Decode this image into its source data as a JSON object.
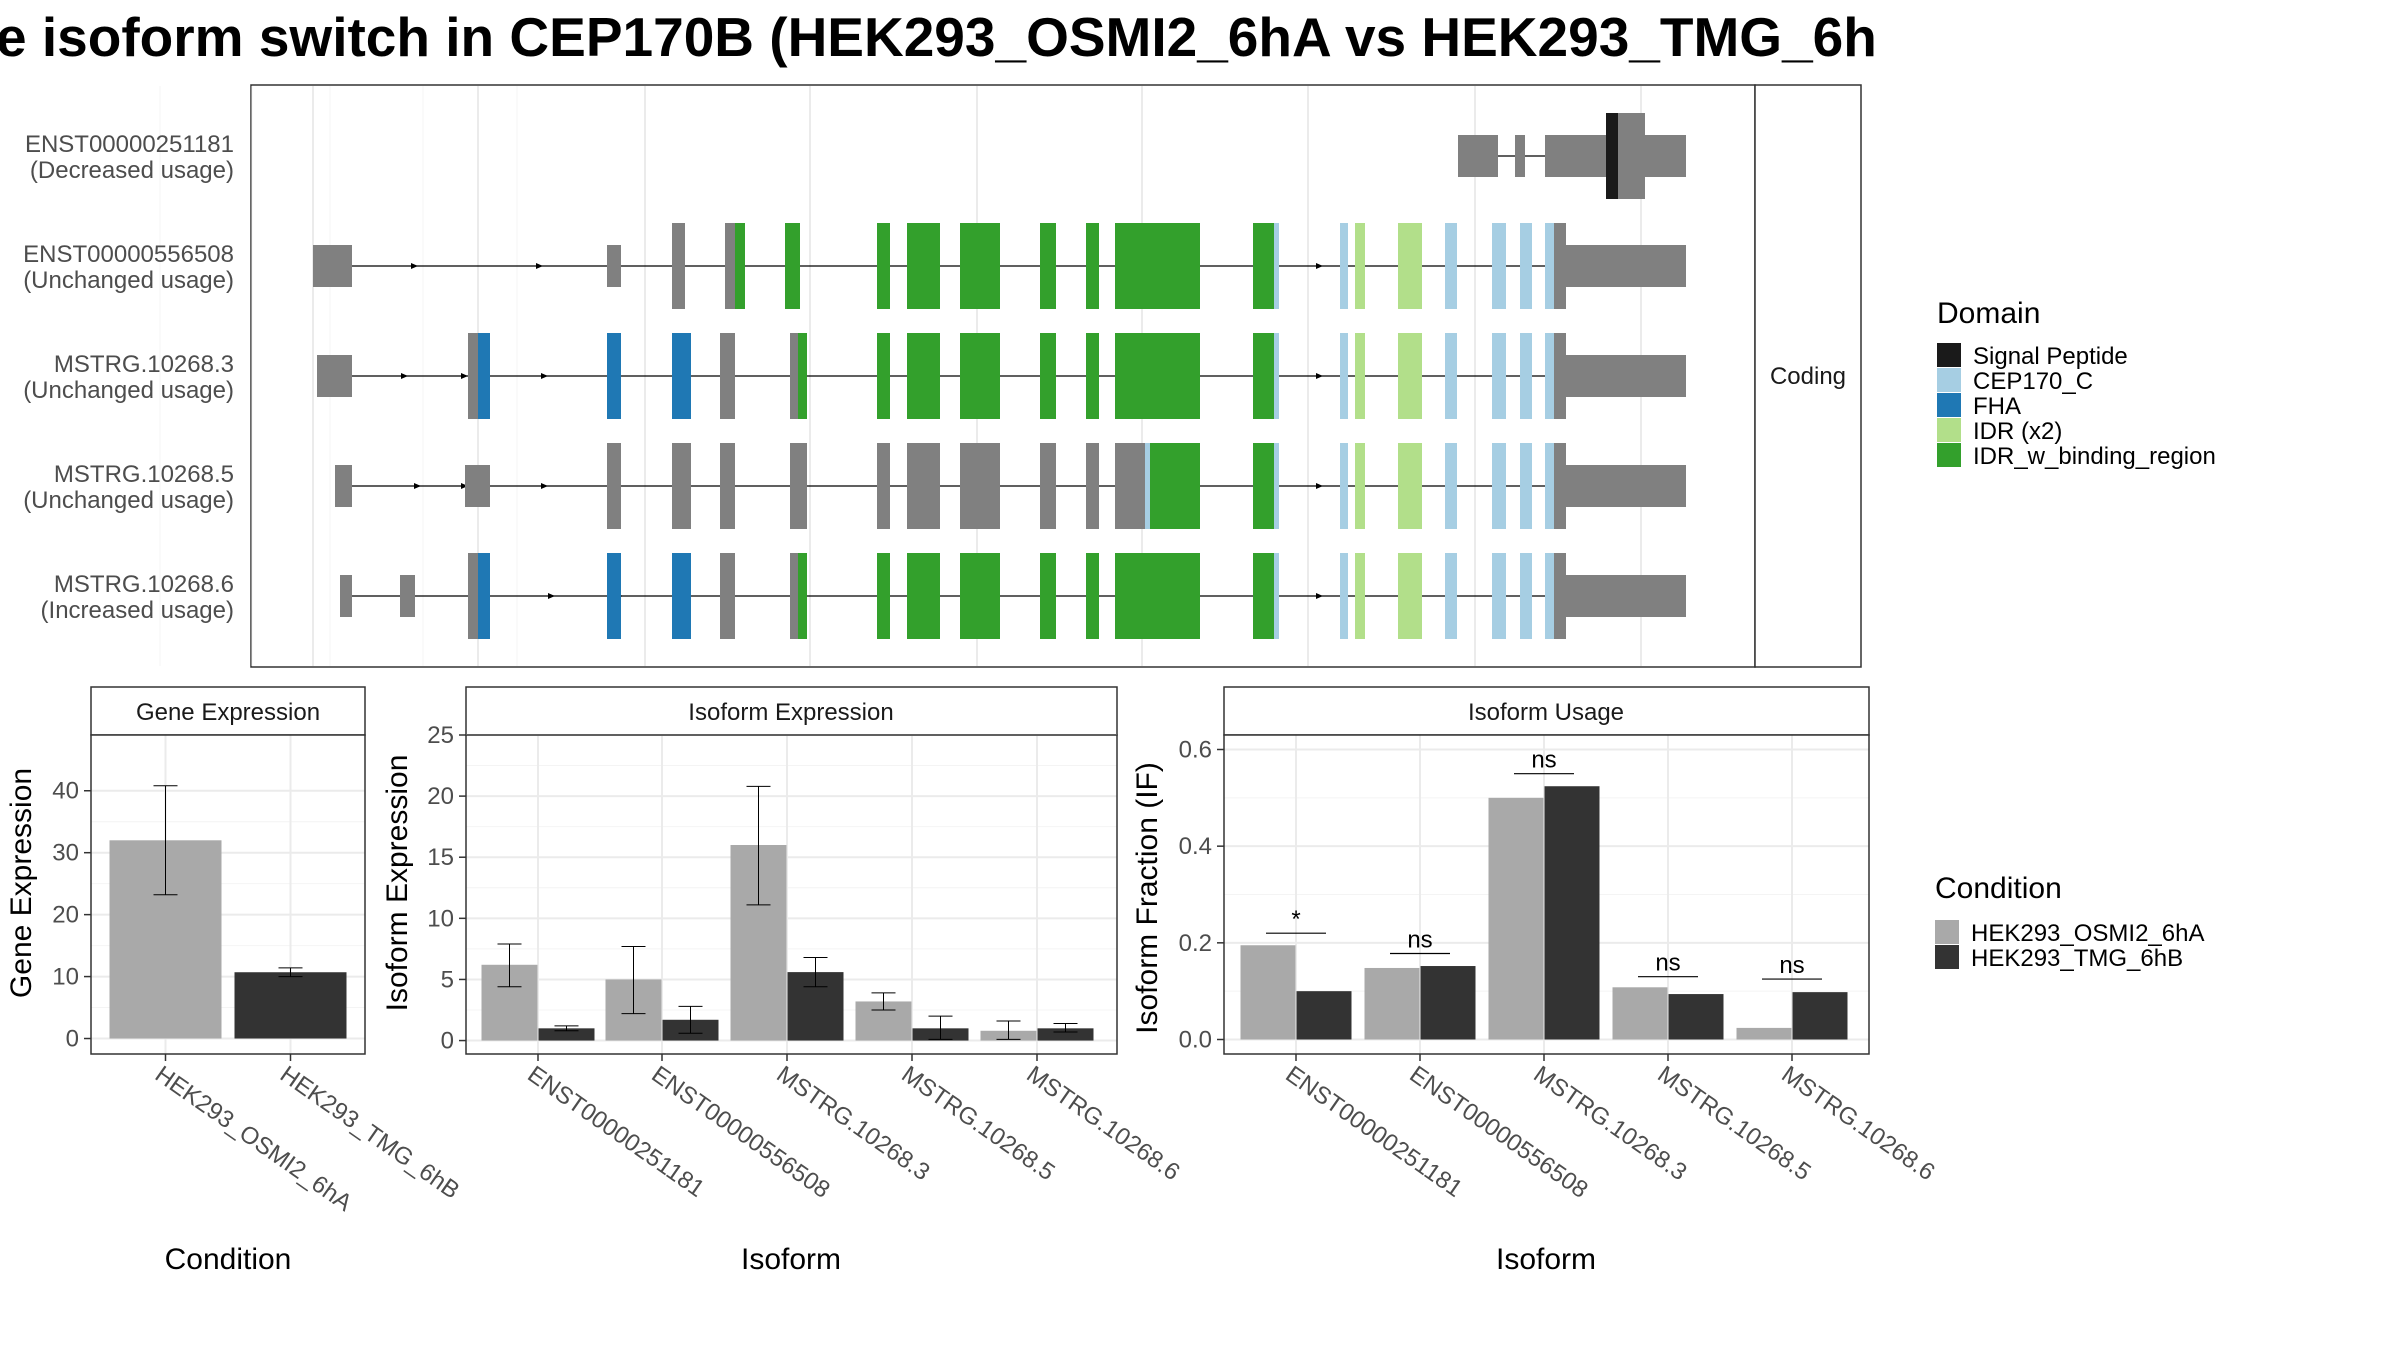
{
  "figure": {
    "title": "e isoform switch in CEP170B (HEK293_OSMI2_6hA vs HEK293_TMG_6h"
  },
  "structure": {
    "facet_label": "Coding",
    "transcripts": [
      {
        "id": "ENST00000251181",
        "usage": "(Decreased usage)"
      },
      {
        "id": "ENST00000556508",
        "usage": "(Unchanged usage)"
      },
      {
        "id": "MSTRG.10268.3",
        "usage": "(Unchanged usage)"
      },
      {
        "id": "MSTRG.10268.5",
        "usage": "(Unchanged usage)"
      },
      {
        "id": "MSTRG.10268.6",
        "usage": "(Increased usage)"
      }
    ]
  },
  "legend_domain": {
    "title": "Domain",
    "items": [
      {
        "label": "Signal Peptide",
        "color": "#1a1a1a"
      },
      {
        "label": "CEP170_C",
        "color": "#a6cee3"
      },
      {
        "label": "FHA",
        "color": "#1f78b4"
      },
      {
        "label": "IDR (x2)",
        "color": "#b2df8a"
      },
      {
        "label": "IDR_w_binding_region",
        "color": "#33a02c"
      }
    ]
  },
  "legend_condition": {
    "title": "Condition",
    "items": [
      {
        "label": "HEK293_OSMI2_6hA",
        "color": "#a9a9a9"
      },
      {
        "label": "HEK293_TMG_6hB",
        "color": "#333333"
      }
    ]
  },
  "colors": {
    "noncoding": "#808080",
    "condition_a": "#a9a9a9",
    "condition_b": "#333333",
    "grid": "#ebebeb"
  },
  "chart_data": [
    {
      "type": "bar",
      "title": "Gene Expression",
      "xlabel": "Condition",
      "ylabel": "Gene Expression",
      "ylim": [
        -2.5,
        49
      ],
      "yticks": [
        0,
        10,
        20,
        30,
        40
      ],
      "categories": [
        "HEK293_OSMI2_6hA",
        "HEK293_TMG_6hB"
      ],
      "values": [
        32,
        10.7
      ],
      "error_low": [
        23.2,
        10.0
      ],
      "error_high": [
        40.8,
        11.4
      ]
    },
    {
      "type": "bar",
      "title": "Isoform Expression",
      "xlabel": "Isoform",
      "ylabel": "Isoform Expression",
      "ylim": [
        -1.1,
        25
      ],
      "yticks": [
        0,
        5,
        10,
        15,
        20,
        25
      ],
      "categories": [
        "ENST00000251181",
        "ENST00000556508",
        "MSTRG.10268.3",
        "MSTRG.10268.5",
        "MSTRG.10268.6"
      ],
      "series": [
        {
          "name": "HEK293_OSMI2_6hA",
          "values": [
            6.2,
            5.0,
            16.0,
            3.2,
            0.8
          ],
          "error_low": [
            4.4,
            2.2,
            11.1,
            2.5,
            0.1
          ],
          "error_high": [
            7.9,
            7.7,
            20.8,
            3.9,
            1.6
          ]
        },
        {
          "name": "HEK293_TMG_6hB",
          "values": [
            1.0,
            1.7,
            5.6,
            1.0,
            1.0
          ],
          "error_low": [
            0.8,
            0.6,
            4.4,
            0.1,
            0.7
          ],
          "error_high": [
            1.2,
            2.8,
            6.8,
            2.0,
            1.4
          ]
        }
      ]
    },
    {
      "type": "bar",
      "title": "Isoform Usage",
      "xlabel": "Isoform",
      "ylabel": "Isoform Fraction (IF)",
      "ylim": [
        -0.03,
        0.63
      ],
      "yticks": [
        0.0,
        0.2,
        0.4,
        0.6
      ],
      "ytick_labels": [
        "0.0",
        "0.2",
        "0.4",
        "0.6"
      ],
      "categories": [
        "ENST00000251181",
        "ENST00000556508",
        "MSTRG.10268.3",
        "MSTRG.10268.5",
        "MSTRG.10268.6"
      ],
      "series": [
        {
          "name": "HEK293_OSMI2_6hA",
          "values": [
            0.195,
            0.148,
            0.5,
            0.108,
            0.024
          ]
        },
        {
          "name": "HEK293_TMG_6hB",
          "values": [
            0.1,
            0.152,
            0.524,
            0.094,
            0.098
          ]
        }
      ],
      "significance": [
        "*",
        "ns",
        "ns",
        "ns",
        "ns"
      ],
      "significance_y": [
        0.22,
        0.178,
        0.55,
        0.13,
        0.125
      ]
    }
  ]
}
